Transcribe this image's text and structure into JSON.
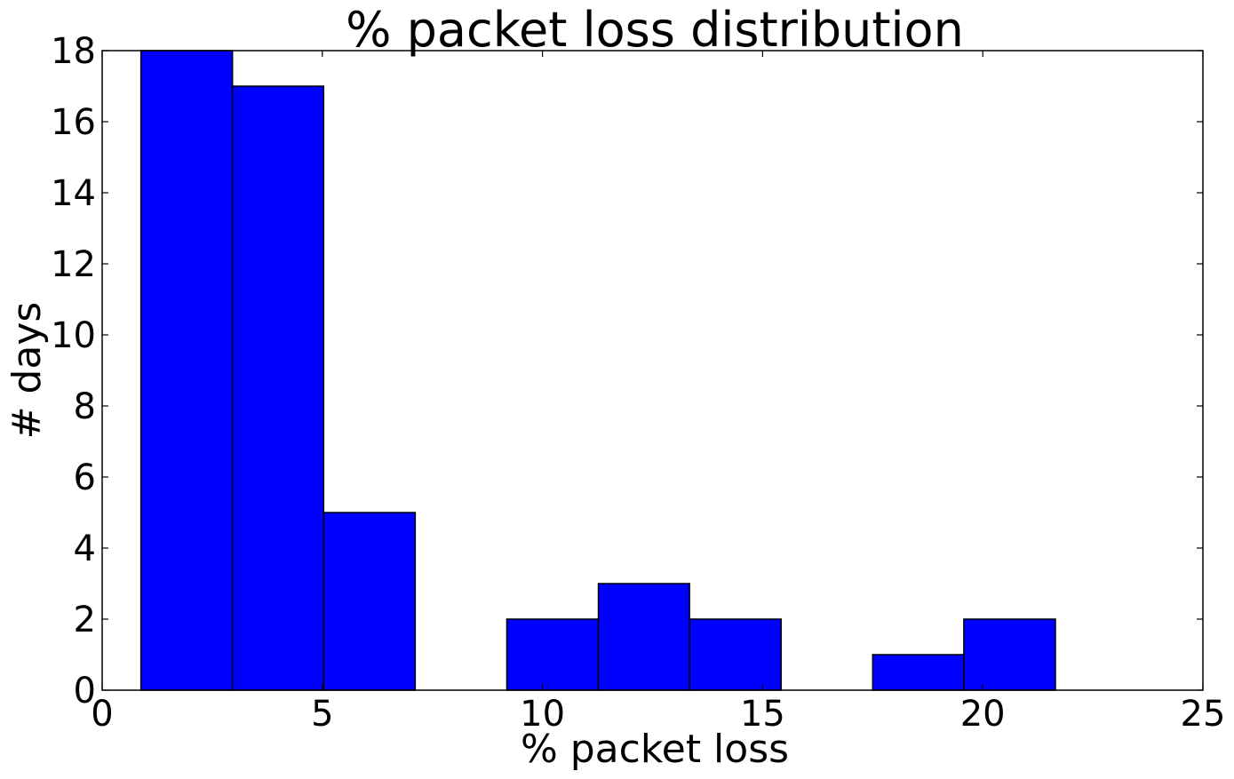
{
  "chart_data": {
    "type": "bar",
    "title": "% packet loss distribution",
    "xlabel": "% packet loss",
    "ylabel": "# days",
    "xlim": [
      0,
      25
    ],
    "ylim": [
      0,
      18
    ],
    "xticks": [
      "0",
      "5",
      "10",
      "15",
      "20",
      "25"
    ],
    "yticks": [
      "0",
      "2",
      "4",
      "6",
      "8",
      "10",
      "12",
      "14",
      "16",
      "18"
    ],
    "bin_edges": [
      0.88,
      2.96,
      5.03,
      7.11,
      9.19,
      11.27,
      13.34,
      15.42,
      17.5,
      19.57,
      21.65
    ],
    "values": [
      18,
      17,
      5,
      0,
      2,
      3,
      2,
      0,
      1,
      2
    ],
    "bar_color": "#0000ff",
    "edge_color": "#000000",
    "grid": false,
    "legend": "none"
  }
}
